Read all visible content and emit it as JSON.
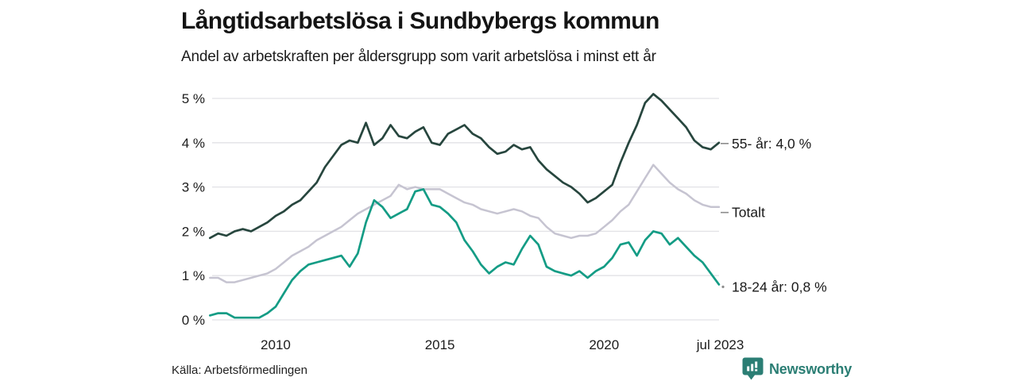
{
  "header": {
    "title": "Långtidsarbetslösa i Sundbybergs kommun",
    "subtitle": "Andel av arbetskraften per åldersgrupp som varit arbetslösa i minst ett år"
  },
  "footer": {
    "source": "Källa: Arbetsförmedlingen",
    "brand": "Newsworthy"
  },
  "colors": {
    "series_55": "#27463e",
    "series_total": "#c6c4d1",
    "series_18_24": "#149c85",
    "gridline": "#e2e2e6",
    "axis_text": "#1c1c1c",
    "label_text": "#1a1a1a",
    "marker": "#8b8b8b",
    "brand_teal": "#2b7e74"
  },
  "chart_data": {
    "type": "line",
    "title": "Långtidsarbetslösa i Sundbybergs kommun",
    "subtitle": "Andel av arbetskraften per åldersgrupp som varit arbetslösa i minst ett år",
    "grid": true,
    "legend_position": "right-end-labels",
    "ylim": [
      0,
      5.35
    ],
    "xlim": [
      2008,
      2023.58
    ],
    "y_tick_values": [
      0,
      1,
      2,
      3,
      4,
      5
    ],
    "y_tick_labels": [
      "0 %",
      "1 %",
      "2 %",
      "3 %",
      "4 %",
      "5 %"
    ],
    "x_tick_values": [
      2010,
      2015,
      2020,
      2023.54
    ],
    "x_tick_labels": [
      "2010",
      "2015",
      "2020",
      "jul 2023"
    ],
    "x": [
      2008.0,
      2008.25,
      2008.5,
      2008.75,
      2009.0,
      2009.25,
      2009.5,
      2009.75,
      2010.0,
      2010.25,
      2010.5,
      2010.75,
      2011.0,
      2011.25,
      2011.5,
      2011.75,
      2012.0,
      2012.25,
      2012.5,
      2012.75,
      2013.0,
      2013.25,
      2013.5,
      2013.75,
      2014.0,
      2014.25,
      2014.5,
      2014.75,
      2015.0,
      2015.25,
      2015.5,
      2015.75,
      2016.0,
      2016.25,
      2016.5,
      2016.75,
      2017.0,
      2017.25,
      2017.5,
      2017.75,
      2018.0,
      2018.25,
      2018.5,
      2018.75,
      2019.0,
      2019.25,
      2019.5,
      2019.75,
      2020.0,
      2020.25,
      2020.5,
      2020.75,
      2021.0,
      2021.25,
      2021.5,
      2021.75,
      2022.0,
      2022.25,
      2022.5,
      2022.75,
      2023.0,
      2023.25,
      2023.5
    ],
    "series": [
      {
        "name": "55- år",
        "label": "55- år: 4,0 %",
        "end_value_label": "4,0 %",
        "color": "#27463e",
        "values": [
          1.85,
          1.95,
          1.9,
          2.0,
          2.05,
          2.0,
          2.1,
          2.2,
          2.35,
          2.45,
          2.6,
          2.7,
          2.9,
          3.1,
          3.45,
          3.7,
          3.95,
          4.05,
          4.0,
          4.45,
          3.95,
          4.1,
          4.4,
          4.15,
          4.1,
          4.25,
          4.35,
          4.0,
          3.95,
          4.2,
          4.3,
          4.4,
          4.2,
          4.1,
          3.9,
          3.75,
          3.8,
          3.95,
          3.85,
          3.9,
          3.6,
          3.4,
          3.25,
          3.1,
          3.0,
          2.85,
          2.65,
          2.75,
          2.9,
          3.05,
          3.55,
          4.0,
          4.4,
          4.9,
          5.1,
          4.95,
          4.75,
          4.55,
          4.35,
          4.05,
          3.9,
          3.85,
          4.0
        ]
      },
      {
        "name": "Totalt",
        "label": "Totalt",
        "end_value_label": "",
        "color": "#c6c4d1",
        "values": [
          0.95,
          0.95,
          0.85,
          0.85,
          0.9,
          0.95,
          1.0,
          1.05,
          1.15,
          1.3,
          1.45,
          1.55,
          1.65,
          1.8,
          1.9,
          2.0,
          2.1,
          2.25,
          2.4,
          2.5,
          2.6,
          2.7,
          2.8,
          3.05,
          2.95,
          3.0,
          2.95,
          2.95,
          2.95,
          2.85,
          2.75,
          2.65,
          2.6,
          2.5,
          2.45,
          2.4,
          2.45,
          2.5,
          2.45,
          2.35,
          2.3,
          2.1,
          1.95,
          1.9,
          1.85,
          1.9,
          1.9,
          1.95,
          2.1,
          2.25,
          2.45,
          2.6,
          2.9,
          3.2,
          3.5,
          3.3,
          3.1,
          2.95,
          2.85,
          2.7,
          2.6,
          2.55,
          2.55
        ]
      },
      {
        "name": "18-24 år",
        "label": "18-24 år: 0,8 %",
        "end_value_label": "0,8 %",
        "color": "#149c85",
        "values": [
          0.1,
          0.15,
          0.15,
          0.05,
          0.05,
          0.05,
          0.05,
          0.15,
          0.3,
          0.6,
          0.9,
          1.1,
          1.25,
          1.3,
          1.35,
          1.4,
          1.45,
          1.2,
          1.5,
          2.2,
          2.7,
          2.55,
          2.3,
          2.4,
          2.5,
          2.9,
          2.95,
          2.6,
          2.55,
          2.4,
          2.2,
          1.8,
          1.55,
          1.25,
          1.05,
          1.2,
          1.3,
          1.25,
          1.6,
          1.9,
          1.7,
          1.2,
          1.1,
          1.05,
          1.0,
          1.1,
          0.95,
          1.1,
          1.2,
          1.4,
          1.7,
          1.75,
          1.45,
          1.8,
          2.0,
          1.95,
          1.7,
          1.85,
          1.65,
          1.45,
          1.3,
          1.05,
          0.8
        ]
      }
    ]
  }
}
